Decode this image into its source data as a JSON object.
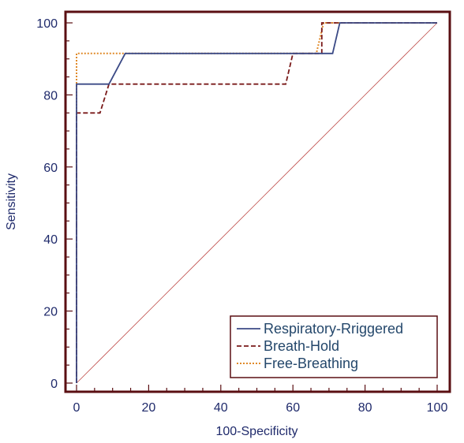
{
  "chart_data": {
    "type": "line",
    "title": "",
    "xlabel": "100-Specificity",
    "ylabel": "Sensitivity",
    "xlim": [
      0,
      100
    ],
    "ylim": [
      0,
      100
    ],
    "xticks": [
      0,
      20,
      40,
      60,
      80,
      100
    ],
    "yticks": [
      0,
      20,
      40,
      60,
      80,
      100
    ],
    "legend_position": "bottom-right",
    "grid": false,
    "colors": {
      "frame": "#5a0f12",
      "axis_text": "#1f2a6b",
      "legend_text": "#24476b",
      "diagonal": "#c0504d"
    },
    "diagonal": {
      "x": [
        0,
        100
      ],
      "y": [
        0,
        100
      ]
    },
    "series": [
      {
        "name": "Respiratory-Rriggered",
        "color": "#3b4a86",
        "dash": "solid",
        "x": [
          0,
          0,
          9,
          9,
          13.5,
          13.5,
          71,
          71,
          73,
          73,
          100
        ],
        "y": [
          0,
          83,
          83,
          83,
          91.5,
          91.5,
          91.5,
          91.5,
          100,
          100,
          100
        ]
      },
      {
        "name": "Breath-Hold",
        "color": "#7a1a1a",
        "dash": "dashed",
        "x": [
          0,
          0,
          6.5,
          9,
          58,
          60,
          68,
          68,
          100
        ],
        "y": [
          0,
          75,
          75,
          83,
          83,
          91.5,
          91.5,
          100,
          100
        ]
      },
      {
        "name": "Free-Breathing",
        "color": "#e08a2a",
        "dash": "dotted",
        "x": [
          0,
          0,
          66.5,
          68.5,
          100
        ],
        "y": [
          0,
          91.5,
          91.5,
          100,
          100
        ]
      }
    ]
  }
}
